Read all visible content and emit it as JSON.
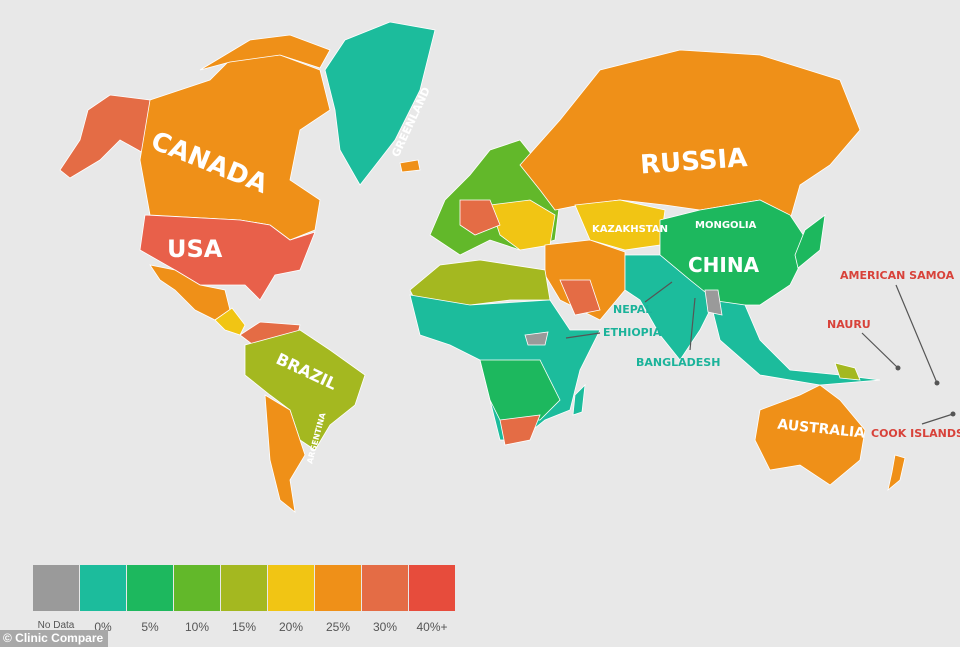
{
  "colors": {
    "no_data": "#9a9a9a",
    "b0": "#1cbc9c",
    "b5": "#1db85e",
    "b10": "#62b82a",
    "b15": "#a4b820",
    "b20": "#f1c514",
    "b25": "#ef9018",
    "b30": "#e46c45",
    "b40": "#e74c3c",
    "label_red": "#d8423a",
    "label_teal": "#1bb39a"
  },
  "map_labels": {
    "canada": "CANADA",
    "usa": "USA",
    "greenland": "GREENLAND",
    "russia": "RUSSIA",
    "kazakhstan": "KAZAKHSTAN",
    "mongolia": "MONGOLIA",
    "china": "CHINA",
    "brazil": "BRAZIL",
    "argentina": "ARGENTINA",
    "australia": "AUSTRALIA"
  },
  "callouts": {
    "nepal": "NEPAL",
    "ethiopia": "ETHIOPIA",
    "bangladesh": "BANGLADESH",
    "american_samoa": "AMERICAN SAMOA",
    "nauru": "NAURU",
    "cook_islands": "COOK ISLANDS"
  },
  "legend": [
    {
      "label": "No Data",
      "color": "#9a9a9a"
    },
    {
      "label": "0%",
      "color": "#1cbc9c"
    },
    {
      "label": "5%",
      "color": "#1db85e"
    },
    {
      "label": "10%",
      "color": "#62b82a"
    },
    {
      "label": "15%",
      "color": "#a4b820"
    },
    {
      "label": "20%",
      "color": "#f1c514"
    },
    {
      "label": "25%",
      "color": "#ef9018"
    },
    {
      "label": "30%",
      "color": "#e46c45"
    },
    {
      "label": "40%+",
      "color": "#e74c3c"
    }
  ],
  "credit": "© Clinic Compare"
}
